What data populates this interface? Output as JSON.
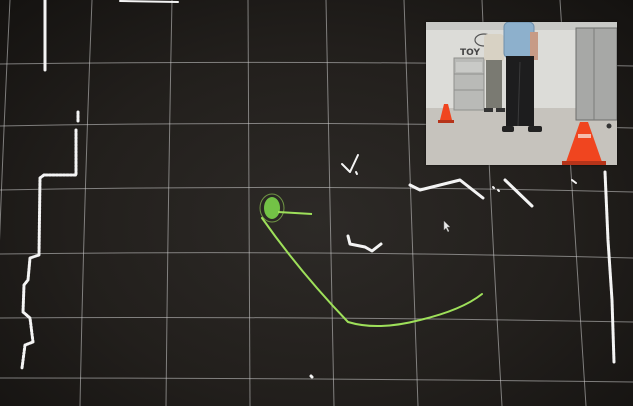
{
  "display": {
    "background_color": "#221f1c",
    "grid_color": "#cfcfcf",
    "lidar_point_color": "#f4f4f4",
    "path_color": "#9ee05a",
    "robot_marker_color": "#7bd34a"
  },
  "camera_inset": {
    "logo_text": "TOY",
    "cone_color": "#f0451f",
    "floor_color": "#c6c3bd",
    "wall_color": "#dcdcd8"
  }
}
